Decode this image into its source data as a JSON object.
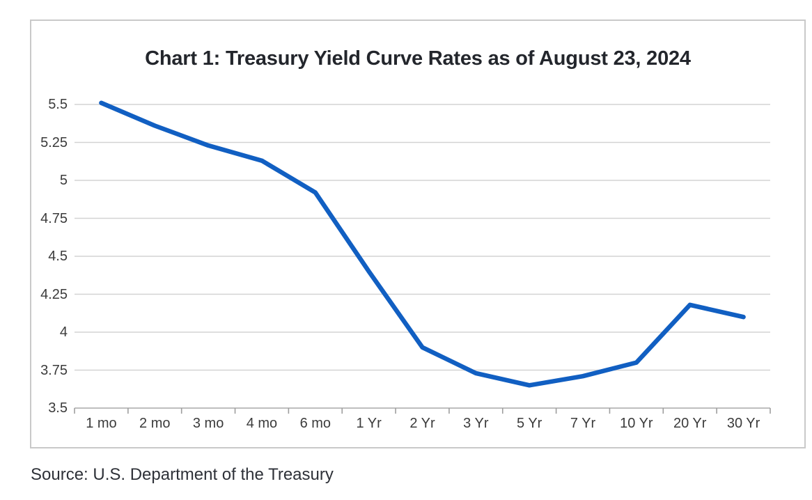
{
  "chart_data": {
    "type": "line",
    "title": "Chart 1: Treasury Yield Curve Rates as of August 23, 2024",
    "categories": [
      "1 mo",
      "2 mo",
      "3 mo",
      "4 mo",
      "6 mo",
      "1 Yr",
      "2 Yr",
      "3 Yr",
      "5 Yr",
      "7 Yr",
      "10 Yr",
      "20 Yr",
      "30 Yr"
    ],
    "values": [
      5.51,
      5.36,
      5.23,
      5.13,
      4.92,
      4.4,
      3.9,
      3.73,
      3.65,
      3.71,
      3.8,
      4.18,
      4.1
    ],
    "xlabel": "",
    "ylabel": "",
    "ylim": [
      3.5,
      5.5
    ],
    "yticks": [
      3.5,
      3.75,
      4,
      4.25,
      4.5,
      4.75,
      5,
      5.25,
      5.5
    ],
    "ytick_labels": [
      "3.5",
      "3.75",
      "4",
      "4.25",
      "4.5",
      "4.75",
      "5",
      "5.25",
      "5.5"
    ],
    "grid": "horizontal",
    "legend_position": "none"
  },
  "footer": {
    "source_note": "Source: U.S. Department of the Treasury"
  },
  "colors": {
    "line": "#115FC2",
    "gridline": "#d3d3d3",
    "axis_line": "#b5b5b5",
    "tick_mark": "#9e9e9e",
    "frame_border": "#c9c9c9",
    "title_text": "#23262c",
    "axis_text": "#3b3b3b",
    "source_text": "#2e3138",
    "background": "#ffffff"
  }
}
